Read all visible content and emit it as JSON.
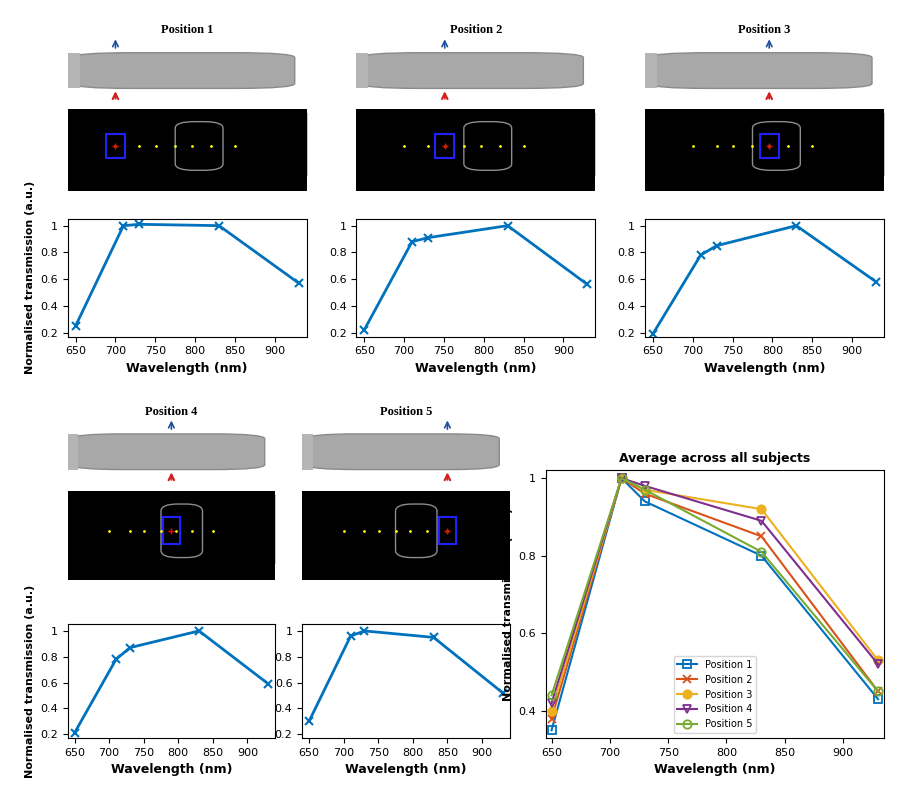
{
  "chart_data": [
    {
      "type": "line",
      "title": "Position 1",
      "x": [
        650,
        710,
        730,
        830,
        930
      ],
      "values": [
        0.25,
        1.0,
        1.01,
        1.0,
        0.57
      ],
      "color": "#0072BD",
      "marker": "x",
      "xlabel": "Wavelength (nm)",
      "ylabel": "Normalised transmission (a.u.)",
      "xlim": [
        640,
        940
      ],
      "ylim": [
        0.17,
        1.05
      ],
      "xticks": [
        650,
        700,
        750,
        800,
        850,
        900
      ],
      "yticks": [
        0.2,
        0.4,
        0.6,
        0.8,
        1
      ],
      "grid": false
    },
    {
      "type": "line",
      "title": "Position 2",
      "x": [
        650,
        710,
        730,
        830,
        930
      ],
      "values": [
        0.22,
        0.88,
        0.91,
        1.0,
        0.56
      ],
      "color": "#0072BD",
      "marker": "x",
      "xlabel": "Wavelength (nm)",
      "xlim": [
        640,
        940
      ],
      "ylim": [
        0.17,
        1.05
      ],
      "xticks": [
        650,
        700,
        750,
        800,
        850,
        900
      ],
      "yticks": [
        0.2,
        0.4,
        0.6,
        0.8,
        1
      ],
      "grid": false
    },
    {
      "type": "line",
      "title": "Position 3",
      "x": [
        650,
        710,
        730,
        830,
        930
      ],
      "values": [
        0.19,
        0.78,
        0.85,
        1.0,
        0.58
      ],
      "color": "#0072BD",
      "marker": "x",
      "xlabel": "Wavelength (nm)",
      "xlim": [
        640,
        940
      ],
      "ylim": [
        0.17,
        1.05
      ],
      "xticks": [
        650,
        700,
        750,
        800,
        850,
        900
      ],
      "yticks": [
        0.2,
        0.4,
        0.6,
        0.8,
        1
      ],
      "grid": false
    },
    {
      "type": "line",
      "title": "Position 4",
      "x": [
        650,
        710,
        730,
        830,
        930
      ],
      "values": [
        0.21,
        0.78,
        0.87,
        1.0,
        0.59
      ],
      "color": "#0072BD",
      "marker": "x",
      "xlabel": "Wavelength (nm)",
      "ylabel": "Normalised transmission (a.u.)",
      "xlim": [
        640,
        940
      ],
      "ylim": [
        0.17,
        1.05
      ],
      "xticks": [
        650,
        700,
        750,
        800,
        850,
        900
      ],
      "yticks": [
        0.2,
        0.4,
        0.6,
        0.8,
        1
      ],
      "grid": false
    },
    {
      "type": "line",
      "title": "Position 5",
      "x": [
        650,
        710,
        730,
        830,
        930
      ],
      "values": [
        0.3,
        0.96,
        1.0,
        0.95,
        0.52
      ],
      "color": "#0072BD",
      "marker": "x",
      "xlabel": "Wavelength (nm)",
      "xlim": [
        640,
        940
      ],
      "ylim": [
        0.17,
        1.05
      ],
      "xticks": [
        650,
        700,
        750,
        800,
        850,
        900
      ],
      "yticks": [
        0.2,
        0.4,
        0.6,
        0.8,
        1
      ],
      "grid": false
    },
    {
      "type": "line",
      "title": "Average across all subjects",
      "x": [
        650,
        710,
        730,
        830,
        930
      ],
      "xlabel": "Wavelength (nm)",
      "ylabel": "Normalised transmission (a.u.)",
      "xlim": [
        645,
        935
      ],
      "ylim": [
        0.33,
        1.02
      ],
      "xticks": [
        650,
        700,
        750,
        800,
        850,
        900
      ],
      "yticks": [
        0.4,
        0.6,
        0.8,
        1
      ],
      "grid": false,
      "legend": "lower center",
      "series": [
        {
          "name": "Position 1",
          "color": "#0072BD",
          "marker": "square",
          "values": [
            0.35,
            1.0,
            0.94,
            0.8,
            0.43
          ]
        },
        {
          "name": "Position 2",
          "color": "#D95319",
          "marker": "x",
          "values": [
            0.38,
            1.0,
            0.96,
            0.85,
            0.45
          ]
        },
        {
          "name": "Position 3",
          "color": "#EDB120",
          "marker": "circle",
          "values": [
            0.4,
            1.0,
            0.97,
            0.92,
            0.53
          ]
        },
        {
          "name": "Position 4",
          "color": "#7E2F8E",
          "marker": "triangle_down",
          "values": [
            0.42,
            1.0,
            0.98,
            0.89,
            0.52
          ]
        },
        {
          "name": "Position 5",
          "color": "#77AC30",
          "marker": "circle_open",
          "values": [
            0.44,
            1.0,
            0.97,
            0.81,
            0.45
          ]
        }
      ]
    }
  ]
}
